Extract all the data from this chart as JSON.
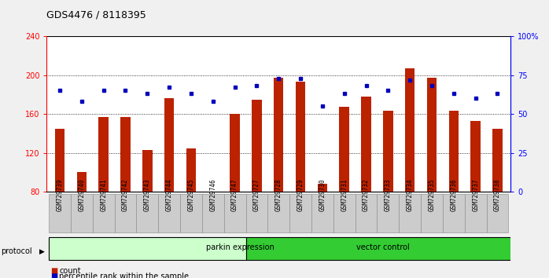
{
  "title": "GDS4476 / 8118395",
  "samples": [
    "GSM729739",
    "GSM729740",
    "GSM729741",
    "GSM729742",
    "GSM729743",
    "GSM729744",
    "GSM729745",
    "GSM729746",
    "GSM729747",
    "GSM729727",
    "GSM729728",
    "GSM729729",
    "GSM729730",
    "GSM729731",
    "GSM729732",
    "GSM729733",
    "GSM729734",
    "GSM729735",
    "GSM729736",
    "GSM729737",
    "GSM729738"
  ],
  "bar_values": [
    145,
    100,
    157,
    157,
    123,
    176,
    125,
    80,
    160,
    175,
    197,
    193,
    88,
    167,
    178,
    163,
    207,
    197,
    163,
    153,
    145
  ],
  "dot_values_pct": [
    65,
    58,
    65,
    65,
    63,
    67,
    63,
    58,
    67,
    68,
    73,
    73,
    55,
    63,
    68,
    65,
    72,
    68,
    63,
    60,
    63
  ],
  "group1_label": "parkin expression",
  "group1_count": 9,
  "group2_label": "vector control",
  "group2_count": 12,
  "protocol_label": "protocol",
  "bar_color": "#bb2200",
  "dot_color": "#0000bb",
  "group1_facecolor": "#ccffcc",
  "group2_facecolor": "#33cc33",
  "ylim_left": [
    80,
    240
  ],
  "ylim_right": [
    0,
    100
  ],
  "yticks_left": [
    80,
    120,
    160,
    200,
    240
  ],
  "yticks_right": [
    0,
    25,
    50,
    75,
    100
  ],
  "ytick_labels_right": [
    "0",
    "25",
    "50",
    "75",
    "100%"
  ],
  "legend_count_label": "count",
  "legend_pct_label": "percentile rank within the sample",
  "fig_bg": "#f0f0f0",
  "plot_bg": "#ffffff",
  "ticklabel_bg": "#cccccc"
}
